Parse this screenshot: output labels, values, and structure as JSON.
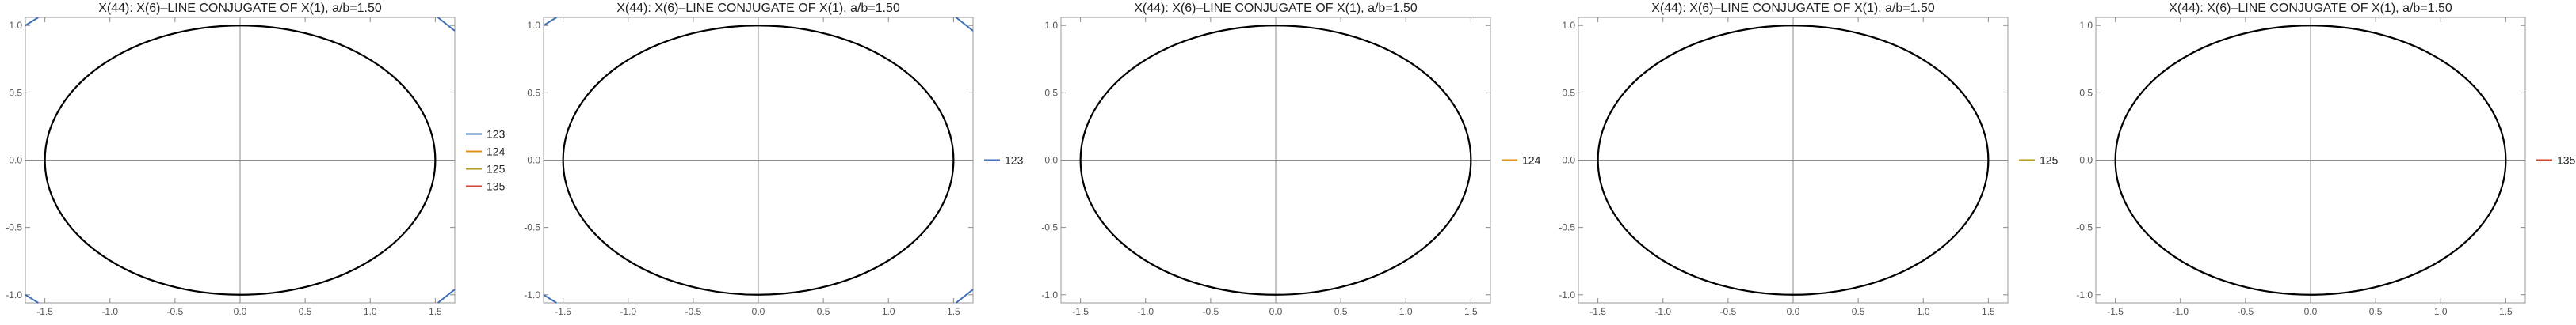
{
  "chart_data": [
    {
      "type": "line",
      "title": "X(44): X(6)–LINE CONJUGATE OF X(1), a/b=1.50",
      "xlabel": "",
      "ylabel": "",
      "xlim": [
        -1.65,
        1.65
      ],
      "ylim": [
        -1.06,
        1.06
      ],
      "x_ticks": [
        "-1.5",
        "-1.0",
        "-0.5",
        "0.0",
        "0.5",
        "1.0",
        "1.5"
      ],
      "y_ticks": [
        "-1.0",
        "-0.5",
        "0.0",
        "0.5",
        "1.0"
      ],
      "grid": false,
      "ellipse": {
        "semi_major": 1.5,
        "semi_minor": 1.0,
        "color": "#000000"
      },
      "legend_position": "right",
      "series": [
        {
          "name": "123",
          "color": "#3f6fb5",
          "segments": [
            [
              [
                -1.65,
                1.0
              ],
              [
                -1.55,
                1.06
              ]
            ],
            [
              [
                1.52,
                1.06
              ],
              [
                1.65,
                0.96
              ]
            ],
            [
              [
                -1.65,
                -1.0
              ],
              [
                -1.55,
                -1.06
              ]
            ],
            [
              [
                1.52,
                -1.06
              ],
              [
                1.65,
                -0.96
              ]
            ]
          ]
        },
        {
          "name": "124",
          "color": "#e0901c",
          "segments": []
        },
        {
          "name": "125",
          "color": "#b59a1c",
          "segments": []
        },
        {
          "name": "135",
          "color": "#d2462e",
          "segments": []
        }
      ]
    },
    {
      "type": "line",
      "title": "X(44): X(6)–LINE CONJUGATE OF X(1), a/b=1.50",
      "xlabel": "",
      "ylabel": "",
      "xlim": [
        -1.65,
        1.65
      ],
      "ylim": [
        -1.06,
        1.06
      ],
      "x_ticks": [
        "-1.5",
        "-1.0",
        "-0.5",
        "0.0",
        "0.5",
        "1.0",
        "1.5"
      ],
      "y_ticks": [
        "-1.0",
        "-0.5",
        "0.0",
        "0.5",
        "1.0"
      ],
      "grid": false,
      "ellipse": {
        "semi_major": 1.5,
        "semi_minor": 1.0,
        "color": "#000000"
      },
      "legend_position": "right",
      "series": [
        {
          "name": "123",
          "color": "#3f6fb5",
          "segments": [
            [
              [
                -1.65,
                1.0
              ],
              [
                -1.55,
                1.06
              ]
            ],
            [
              [
                1.52,
                1.06
              ],
              [
                1.65,
                0.96
              ]
            ],
            [
              [
                -1.65,
                -1.0
              ],
              [
                -1.55,
                -1.06
              ]
            ],
            [
              [
                1.52,
                -1.06
              ],
              [
                1.65,
                -0.96
              ]
            ]
          ]
        }
      ]
    },
    {
      "type": "line",
      "title": "X(44): X(6)–LINE CONJUGATE OF X(1), a/b=1.50",
      "xlabel": "",
      "ylabel": "",
      "xlim": [
        -1.65,
        1.65
      ],
      "ylim": [
        -1.06,
        1.06
      ],
      "x_ticks": [
        "-1.5",
        "-1.0",
        "-0.5",
        "0.0",
        "0.5",
        "1.0",
        "1.5"
      ],
      "y_ticks": [
        "-1.0",
        "-0.5",
        "0.0",
        "0.5",
        "1.0"
      ],
      "grid": false,
      "ellipse": {
        "semi_major": 1.5,
        "semi_minor": 1.0,
        "color": "#000000"
      },
      "legend_position": "right",
      "series": [
        {
          "name": "124",
          "color": "#e0901c",
          "segments": []
        }
      ]
    },
    {
      "type": "line",
      "title": "X(44): X(6)–LINE CONJUGATE OF X(1), a/b=1.50",
      "xlabel": "",
      "ylabel": "",
      "xlim": [
        -1.65,
        1.65
      ],
      "ylim": [
        -1.06,
        1.06
      ],
      "x_ticks": [
        "-1.5",
        "-1.0",
        "-0.5",
        "0.0",
        "0.5",
        "1.0",
        "1.5"
      ],
      "y_ticks": [
        "-1.0",
        "-0.5",
        "0.0",
        "0.5",
        "1.0"
      ],
      "grid": false,
      "ellipse": {
        "semi_major": 1.5,
        "semi_minor": 1.0,
        "color": "#000000"
      },
      "legend_position": "right",
      "series": [
        {
          "name": "125",
          "color": "#b59a1c",
          "segments": []
        }
      ]
    },
    {
      "type": "line",
      "title": "X(44): X(6)–LINE CONJUGATE OF X(1), a/b=1.50",
      "xlabel": "",
      "ylabel": "",
      "xlim": [
        -1.65,
        1.65
      ],
      "ylim": [
        -1.06,
        1.06
      ],
      "x_ticks": [
        "-1.5",
        "-1.0",
        "-0.5",
        "0.0",
        "0.5",
        "1.0",
        "1.5"
      ],
      "y_ticks": [
        "-1.0",
        "-0.5",
        "0.0",
        "0.5",
        "1.0"
      ],
      "grid": false,
      "ellipse": {
        "semi_major": 1.5,
        "semi_minor": 1.0,
        "color": "#000000"
      },
      "legend_position": "right",
      "series": [
        {
          "name": "135",
          "color": "#d2462e",
          "segments": []
        }
      ]
    }
  ]
}
